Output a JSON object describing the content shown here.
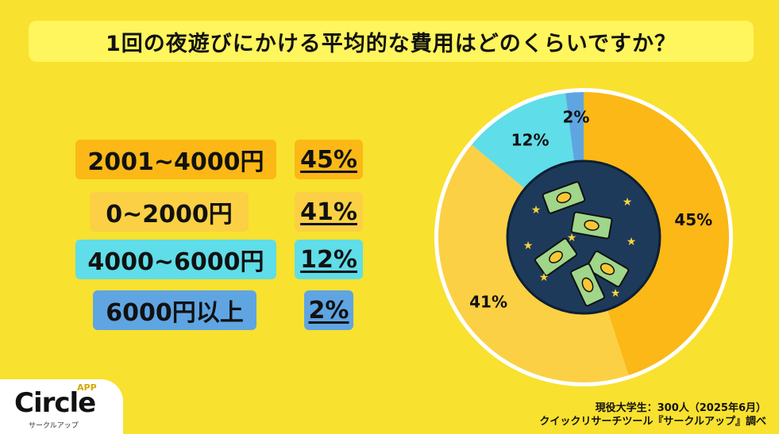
{
  "title": "1回の夜遊びにかける平均的な費用はどのくらいですか？",
  "chart_data": {
    "type": "pie",
    "title": "1回の夜遊びにかける平均的な費用はどのくらいですか？",
    "categories": [
      "2001~4000円",
      "0~2000円",
      "4000~6000円",
      "6000円以上"
    ],
    "values": [
      45,
      41,
      12,
      2
    ],
    "labels": [
      "45%",
      "41%",
      "12%",
      "2%"
    ],
    "colors": [
      "#fbb817",
      "#fbd044",
      "#5fdde8",
      "#5fa5e2"
    ],
    "label_bg_colors": [
      "#fbb817",
      "#fbd044",
      "#5fdde8",
      "#5fa5e2"
    ],
    "legend_position": "left"
  },
  "source": {
    "line1": "現役大学生：300人（2025年6月）",
    "line2": "クイックリサーチツール『サークルアップ』調べ"
  },
  "logo": {
    "name": "Circle",
    "app": "APP",
    "sub": "サークルアップ"
  }
}
